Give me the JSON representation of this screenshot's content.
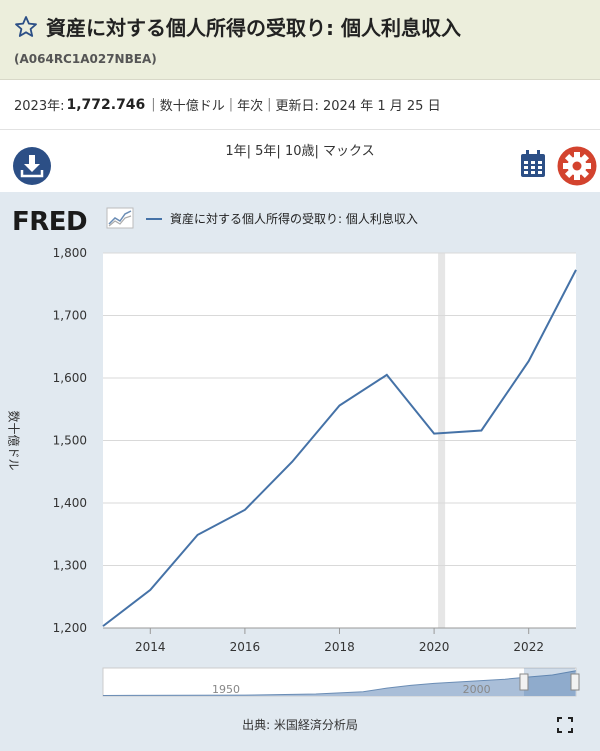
{
  "header": {
    "title": "資産に対する個人所得の受取り: 個人利息収入",
    "series_id": "(A064RC1A027NBEA)"
  },
  "summary": {
    "year_label": "2023年:",
    "value": "1,772.746",
    "units": "数十億ドル",
    "frequency": "年次",
    "updated": "更新日: 2024 年 1 月 25 日"
  },
  "toolbar": {
    "range_1y": "1年",
    "range_5y": "5年",
    "range_10y": "10歳",
    "range_max": "マックス"
  },
  "chart_meta": {
    "logo": "FRED",
    "legend": "資産に対する個人所得の受取り: 個人利息収入",
    "ylabel": "数十億ドル",
    "source": "出典: 米国経済分析局",
    "navigator_labels": [
      "1950",
      "2000"
    ]
  },
  "colors": {
    "line": "#4572a7",
    "panel": "#e1e9f0",
    "recession": "#e6e6e6",
    "accent_blue": "#2c4f86",
    "gear": "#d3432e"
  },
  "chart_data": {
    "type": "line",
    "x": [
      2013,
      2014,
      2015,
      2016,
      2017,
      2018,
      2019,
      2020,
      2021,
      2022,
      2023
    ],
    "series": [
      {
        "name": "資産に対する個人所得の受取り: 個人利息収入",
        "values": [
          1203,
          1261,
          1349,
          1389,
          1466,
          1556,
          1605,
          1511,
          1516,
          1627,
          1773
        ]
      }
    ],
    "xticks": [
      "2014",
      "2016",
      "2018",
      "2020",
      "2022"
    ],
    "yticks": [
      "1,200",
      "1,300",
      "1,400",
      "1,500",
      "1,600",
      "1,700",
      "1,800"
    ],
    "ylim": [
      1200,
      1800
    ],
    "xlim": [
      2013,
      2023
    ],
    "recession": [
      2020,
      2020.25
    ],
    "grid": true
  }
}
